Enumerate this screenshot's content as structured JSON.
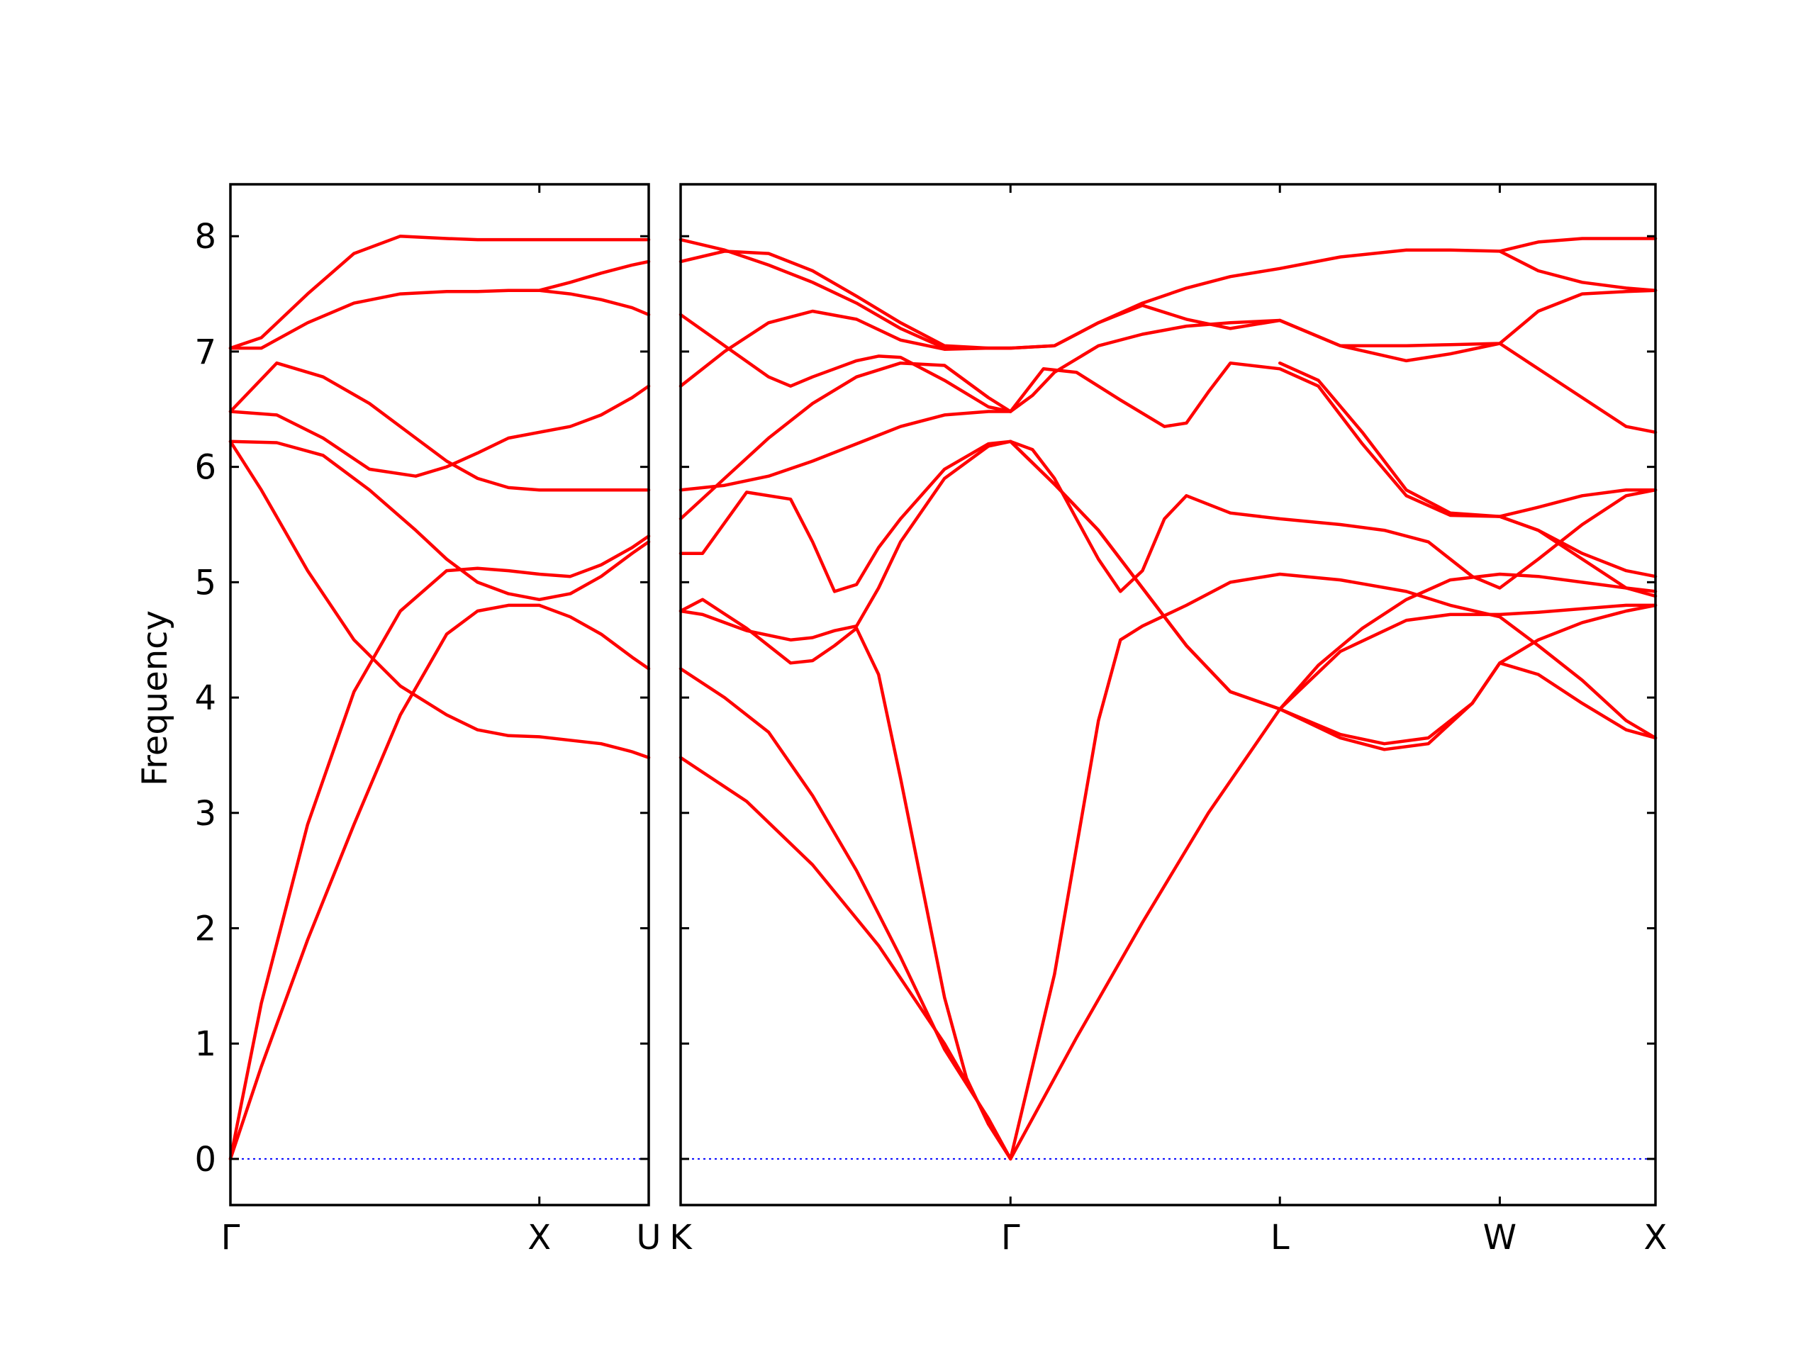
{
  "chart_data": {
    "type": "line",
    "title": "",
    "ylabel": "Frequency",
    "xlabel": "",
    "ylim": [
      -0.4,
      8.45
    ],
    "y_ticks": [
      0,
      1,
      2,
      3,
      4,
      5,
      6,
      7,
      8
    ],
    "grid": false,
    "legend": "none",
    "colors": {
      "bands": "#ff0000",
      "zero_line": "#0000ff",
      "frame": "#000000"
    },
    "panels": [
      {
        "id": "left",
        "path": [
          "Γ",
          "X",
          "U"
        ],
        "xlim": [
          0,
          1.354
        ],
        "x_ticks": [
          {
            "x": 0,
            "label": "Γ"
          },
          {
            "x": 1,
            "label": "X"
          },
          {
            "x": 1.354,
            "label": "U"
          }
        ],
        "series": [
          {
            "x": [
              0,
              0.1,
              0.25,
              0.4,
              0.55,
              0.7,
              0.8,
              0.9,
              1.0,
              1.1,
              1.2,
              1.3,
              1.354
            ],
            "y": [
              0,
              0.8,
              1.9,
              2.9,
              3.85,
              4.55,
              4.75,
              4.8,
              4.8,
              4.7,
              4.55,
              4.35,
              4.25
            ]
          },
          {
            "x": [
              0,
              0.1,
              0.25,
              0.4,
              0.55,
              0.7,
              0.8,
              0.9,
              1.0,
              1.1,
              1.2,
              1.3,
              1.354
            ],
            "y": [
              0,
              1.35,
              2.9,
              4.05,
              4.75,
              5.1,
              5.12,
              5.1,
              5.07,
              5.05,
              5.15,
              5.3,
              5.4
            ]
          },
          {
            "x": [
              0,
              0.1,
              0.25,
              0.4,
              0.55,
              0.7,
              0.8,
              0.9,
              1.0,
              1.1,
              1.2,
              1.3,
              1.354
            ],
            "y": [
              6.22,
              5.8,
              5.1,
              4.5,
              4.1,
              3.85,
              3.72,
              3.67,
              3.66,
              3.63,
              3.6,
              3.53,
              3.48
            ]
          },
          {
            "x": [
              0,
              0.15,
              0.3,
              0.45,
              0.6,
              0.7,
              0.8,
              0.9,
              1.0,
              1.1,
              1.2,
              1.3,
              1.354
            ],
            "y": [
              6.22,
              6.21,
              6.1,
              5.8,
              5.45,
              5.2,
              5.0,
              4.9,
              4.85,
              4.9,
              5.05,
              5.25,
              5.35
            ]
          },
          {
            "x": [
              0,
              0.15,
              0.3,
              0.45,
              0.6,
              0.7,
              0.8,
              0.9,
              1.0,
              1.1,
              1.2,
              1.3,
              1.354
            ],
            "y": [
              6.48,
              6.45,
              6.25,
              5.98,
              5.92,
              6.0,
              6.12,
              6.25,
              6.3,
              6.35,
              6.45,
              6.6,
              6.7
            ]
          },
          {
            "x": [
              0,
              0.15,
              0.3,
              0.45,
              0.6,
              0.7,
              0.8,
              0.9,
              1.0,
              1.1,
              1.2,
              1.3,
              1.354
            ],
            "y": [
              6.48,
              6.9,
              6.78,
              6.55,
              6.25,
              6.05,
              5.9,
              5.82,
              5.8,
              5.8,
              5.8,
              5.8,
              5.8
            ]
          },
          {
            "x": [
              0,
              0.1,
              0.25,
              0.4,
              0.55,
              0.7,
              0.8,
              0.9,
              1.0,
              1.1,
              1.2,
              1.3,
              1.354
            ],
            "y": [
              7.03,
              7.03,
              7.25,
              7.42,
              7.5,
              7.52,
              7.52,
              7.53,
              7.53,
              7.5,
              7.45,
              7.38,
              7.32
            ]
          },
          {
            "x": [
              0,
              0.1,
              0.25,
              0.4,
              0.55,
              0.7,
              0.8,
              0.9,
              1.0,
              1.1,
              1.2,
              1.3,
              1.354
            ],
            "y": [
              7.03,
              7.12,
              7.5,
              7.85,
              8.0,
              7.98,
              7.97,
              7.97,
              7.97,
              7.97,
              7.97,
              7.97,
              7.97
            ]
          },
          {
            "x": [
              0.95,
              1.0,
              1.1,
              1.2,
              1.3,
              1.354
            ],
            "y": [
              7.53,
              7.53,
              7.6,
              7.68,
              7.75,
              7.78
            ]
          }
        ]
      },
      {
        "id": "right",
        "path": [
          "K",
          "Γ",
          "L",
          "W",
          "X"
        ],
        "xlim": [
          0,
          4.433
        ],
        "x_ticks": [
          {
            "x": 0,
            "label": "K"
          },
          {
            "x": 1.5,
            "label": "Γ"
          },
          {
            "x": 2.725,
            "label": "L"
          },
          {
            "x": 3.725,
            "label": "W"
          },
          {
            "x": 4.433,
            "label": "X"
          }
        ],
        "series": [
          {
            "x": [
              0,
              0.3,
              0.6,
              0.9,
              1.2,
              1.5,
              1.8,
              2.1,
              2.4,
              2.725,
              3.0,
              3.3,
              3.5,
              3.725,
              3.9,
              4.1,
              4.3,
              4.433
            ],
            "y": [
              3.48,
              3.1,
              2.55,
              1.85,
              1.0,
              0,
              1.05,
              2.05,
              3.0,
              3.9,
              4.4,
              4.67,
              4.72,
              4.72,
              4.74,
              4.77,
              4.8,
              4.8
            ]
          },
          {
            "x": [
              0,
              0.2,
              0.4,
              0.6,
              0.8,
              1.0,
              1.2,
              1.4,
              1.5,
              1.7,
              1.9,
              2.0,
              2.1,
              2.3,
              2.5,
              2.725,
              3.0,
              3.3,
              3.5,
              3.725,
              3.9,
              4.1,
              4.3,
              4.433
            ],
            "y": [
              4.25,
              4.0,
              3.7,
              3.15,
              2.5,
              1.75,
              0.95,
              0.35,
              0,
              1.6,
              3.8,
              4.5,
              4.62,
              4.8,
              5.0,
              5.07,
              5.02,
              4.92,
              4.8,
              4.7,
              4.45,
              4.15,
              3.8,
              3.65
            ]
          },
          {
            "x": [
              0,
              0.1,
              0.3,
              0.5,
              0.6,
              0.7,
              0.8,
              0.9,
              1.0,
              1.1,
              1.2,
              1.3,
              1.4,
              1.5
            ],
            "y": [
              4.75,
              4.85,
              4.6,
              4.3,
              4.32,
              4.45,
              4.6,
              4.2,
              3.3,
              2.35,
              1.4,
              0.7,
              0.3,
              0
            ]
          },
          {
            "x": [
              0,
              0.1,
              0.3,
              0.5,
              0.6,
              0.7,
              0.8,
              0.9,
              1.0,
              1.2,
              1.4,
              1.5
            ],
            "y": [
              5.25,
              5.25,
              5.78,
              5.72,
              5.35,
              4.92,
              4.98,
              5.3,
              5.55,
              5.98,
              6.2,
              6.22
            ]
          },
          {
            "x": [
              0,
              0.1,
              0.3,
              0.5,
              0.6,
              0.7,
              0.8,
              0.9,
              1.0,
              1.2,
              1.4,
              1.5
            ],
            "y": [
              4.75,
              4.72,
              4.58,
              4.5,
              4.52,
              4.58,
              4.62,
              4.95,
              5.35,
              5.9,
              6.18,
              6.22
            ]
          },
          {
            "x": [
              1.5,
              1.6,
              1.7,
              1.8,
              1.9,
              2.0,
              2.1,
              2.2,
              2.3,
              2.5,
              2.725,
              3.0,
              3.2,
              3.4,
              3.6,
              3.725,
              3.9,
              4.1,
              4.3,
              4.433
            ],
            "y": [
              6.22,
              6.15,
              5.9,
              5.55,
              5.2,
              4.92,
              5.1,
              5.55,
              5.75,
              5.6,
              5.55,
              5.5,
              5.45,
              5.35,
              5.05,
              4.95,
              5.2,
              5.5,
              5.75,
              5.8
            ]
          },
          {
            "x": [
              1.5,
              1.7,
              1.9,
              2.1,
              2.3,
              2.5,
              2.725,
              3.0,
              3.2,
              3.4,
              3.6,
              3.725,
              3.9,
              4.1,
              4.3,
              4.433
            ],
            "y": [
              6.22,
              5.85,
              5.45,
              4.95,
              4.45,
              4.05,
              3.9,
              3.68,
              3.6,
              3.65,
              3.95,
              4.3,
              4.5,
              4.65,
              4.75,
              4.8
            ]
          },
          {
            "x": [
              1.5,
              1.7,
              1.9,
              2.1,
              2.3,
              2.5,
              2.725,
              3.0,
              3.2,
              3.4,
              3.6,
              3.725,
              3.9,
              4.1,
              4.3,
              4.433
            ],
            "y": [
              6.22,
              5.85,
              5.45,
              4.95,
              4.45,
              4.05,
              3.9,
              3.65,
              3.55,
              3.6,
              3.95,
              4.3,
              4.2,
              3.95,
              3.72,
              3.65
            ]
          },
          {
            "x": [
              2.725,
              2.9,
              3.1,
              3.3,
              3.5,
              3.725,
              3.9,
              4.1,
              4.3,
              4.433
            ],
            "y": [
              3.9,
              4.28,
              4.6,
              4.85,
              5.02,
              5.07,
              5.05,
              5.0,
              4.95,
              4.92
            ]
          },
          {
            "x": [
              0,
              0.2,
              0.4,
              0.6,
              0.8,
              1.0,
              1.2,
              1.4,
              1.5
            ],
            "y": [
              5.8,
              5.84,
              5.92,
              6.05,
              6.2,
              6.35,
              6.45,
              6.48,
              6.48
            ]
          },
          {
            "x": [
              0,
              0.2,
              0.4,
              0.6,
              0.8,
              1.0,
              1.2,
              1.4,
              1.5
            ],
            "y": [
              5.55,
              5.9,
              6.25,
              6.55,
              6.78,
              6.9,
              6.88,
              6.6,
              6.48
            ]
          },
          {
            "x": [
              0,
              0.2,
              0.4,
              0.6,
              0.8,
              1.0,
              1.2,
              1.4,
              1.5
            ],
            "y": [
              6.7,
              7.0,
              7.25,
              7.35,
              7.28,
              7.1,
              7.02,
              7.03,
              7.03
            ]
          },
          {
            "x": [
              0,
              0.2,
              0.4,
              0.5,
              0.6,
              0.7,
              0.8,
              0.9,
              1.0,
              1.2,
              1.4,
              1.5
            ],
            "y": [
              7.32,
              7.05,
              6.78,
              6.7,
              6.78,
              6.85,
              6.92,
              6.96,
              6.95,
              6.75,
              6.52,
              6.48
            ]
          },
          {
            "x": [
              0,
              0.2,
              0.4,
              0.6,
              0.8,
              1.0,
              1.2,
              1.4,
              1.5
            ],
            "y": [
              7.78,
              7.87,
              7.85,
              7.7,
              7.48,
              7.25,
              7.05,
              7.03,
              7.03
            ]
          },
          {
            "x": [
              0,
              0.2,
              0.4,
              0.6,
              0.8,
              1.0,
              1.2,
              1.4,
              1.5
            ],
            "y": [
              7.97,
              7.88,
              7.75,
              7.6,
              7.42,
              7.2,
              7.03,
              7.03,
              7.03
            ]
          },
          {
            "x": [
              1.5,
              1.6,
              1.7,
              1.9,
              2.1,
              2.3,
              2.5,
              2.725,
              3.0,
              3.3,
              3.5,
              3.725,
              3.9,
              4.1,
              4.3,
              4.433
            ],
            "y": [
              6.48,
              6.62,
              6.82,
              7.05,
              7.15,
              7.22,
              7.25,
              7.27,
              7.05,
              6.92,
              6.98,
              7.07,
              6.85,
              6.6,
              6.35,
              6.3
            ]
          },
          {
            "x": [
              1.5,
              1.7,
              1.9,
              2.1,
              2.3,
              2.5,
              2.725,
              3.0,
              3.3,
              3.5,
              3.725,
              3.9,
              4.1,
              4.3,
              4.433
            ],
            "y": [
              7.03,
              7.05,
              7.25,
              7.42,
              7.55,
              7.65,
              7.72,
              7.82,
              7.88,
              7.88,
              7.87,
              7.95,
              7.98,
              7.98,
              7.98
            ]
          },
          {
            "x": [
              1.5,
              1.7,
              1.9,
              2.1,
              2.3,
              2.5,
              2.725,
              3.0,
              3.3,
              3.5,
              3.725,
              3.9,
              4.1,
              4.3,
              4.433
            ],
            "y": [
              7.03,
              7.05,
              7.25,
              7.4,
              7.28,
              7.2,
              7.27,
              7.05,
              7.05,
              7.06,
              7.07,
              7.35,
              7.5,
              7.52,
              7.53
            ]
          },
          {
            "x": [
              1.5,
              1.65,
              1.8,
              2.0,
              2.2,
              2.3,
              2.4,
              2.5,
              2.725,
              2.9,
              3.1,
              3.3,
              3.5,
              3.725,
              3.9,
              4.1,
              4.3,
              4.433
            ],
            "y": [
              6.48,
              6.85,
              6.82,
              6.58,
              6.35,
              6.38,
              6.65,
              6.9,
              6.85,
              6.7,
              6.2,
              5.75,
              5.58,
              5.57,
              5.65,
              5.75,
              5.8,
              5.8
            ]
          },
          {
            "x": [
              2.725,
              2.9,
              3.1,
              3.3,
              3.5,
              3.725,
              3.9,
              4.1,
              4.3,
              4.433
            ],
            "y": [
              6.9,
              6.75,
              6.3,
              5.8,
              5.6,
              5.57,
              5.45,
              5.25,
              5.1,
              5.05
            ]
          },
          {
            "x": [
              3.725,
              3.9,
              4.1,
              4.3,
              4.433
            ],
            "y": [
              7.87,
              7.7,
              7.6,
              7.55,
              7.53
            ]
          },
          {
            "x": [
              3.725,
              3.9,
              4.1,
              4.3,
              4.433
            ],
            "y": [
              5.57,
              5.45,
              5.2,
              4.95,
              4.88
            ]
          }
        ]
      }
    ]
  }
}
